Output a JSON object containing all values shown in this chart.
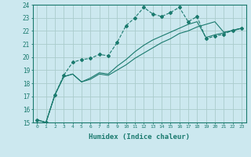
{
  "xlabel": "Humidex (Indice chaleur)",
  "bg_color": "#cce8ef",
  "grid_color": "#aacccc",
  "line_color": "#1a7a6e",
  "xlim": [
    -0.5,
    23.5
  ],
  "ylim": [
    15,
    24
  ],
  "xticks": [
    0,
    1,
    2,
    3,
    4,
    5,
    6,
    7,
    8,
    9,
    10,
    11,
    12,
    13,
    14,
    15,
    16,
    17,
    18,
    19,
    20,
    21,
    22,
    23
  ],
  "yticks": [
    15,
    16,
    17,
    18,
    19,
    20,
    21,
    22,
    23,
    24
  ],
  "series_dashed": [
    15.2,
    15.0,
    17.1,
    18.6,
    19.6,
    19.8,
    19.9,
    20.2,
    20.1,
    21.1,
    22.4,
    23.0,
    23.8,
    23.3,
    23.1,
    23.4,
    23.8,
    22.7,
    23.1,
    21.4,
    21.6,
    21.75,
    22.05,
    22.2
  ],
  "series_solid1": [
    15.2,
    15.0,
    17.1,
    18.5,
    18.7,
    18.1,
    18.3,
    18.7,
    18.6,
    19.0,
    19.4,
    19.9,
    20.3,
    20.7,
    21.1,
    21.4,
    21.8,
    22.0,
    22.3,
    22.5,
    22.7,
    21.9,
    22.0,
    22.2
  ],
  "series_solid2": [
    15.2,
    15.0,
    17.1,
    18.5,
    18.7,
    18.1,
    18.4,
    18.8,
    18.7,
    19.3,
    19.8,
    20.4,
    20.9,
    21.3,
    21.6,
    21.9,
    22.2,
    22.5,
    22.7,
    21.5,
    21.7,
    21.85,
    22.05,
    22.2
  ]
}
